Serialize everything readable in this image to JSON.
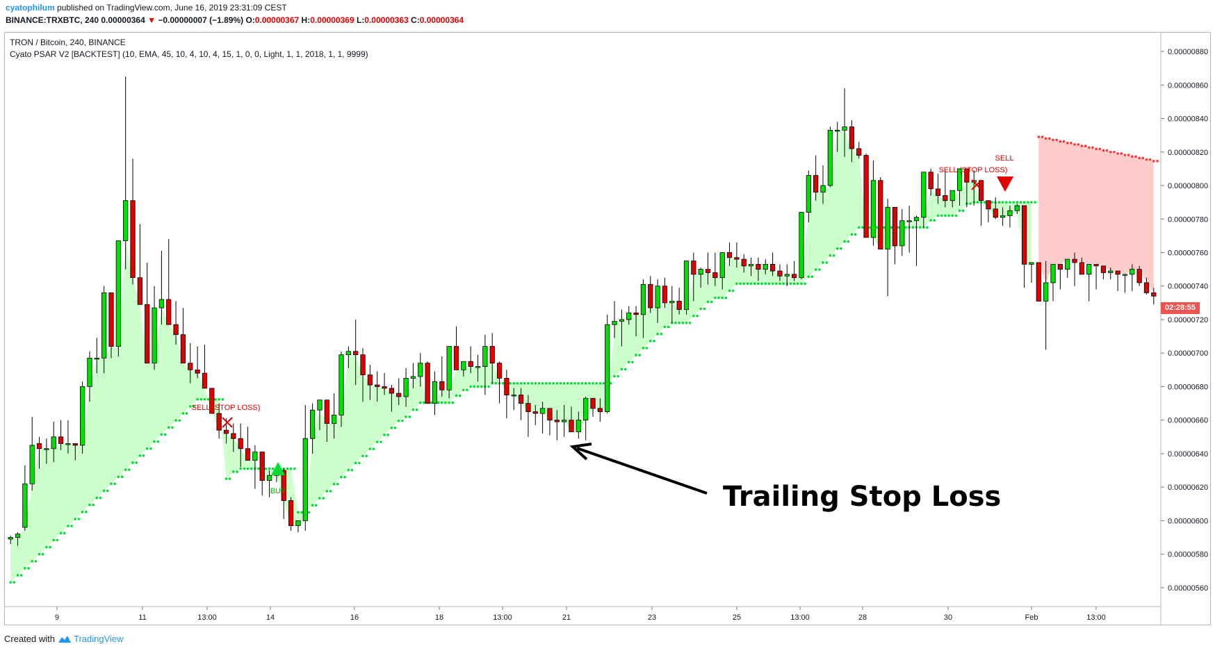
{
  "header": {
    "author": "cyatophilum",
    "published": " published on TradingView.com, June 16, 2019 23:31:09 CEST",
    "symbol_line_prefix": "BINANCE:TRXBTC, 240",
    "last": "0.00000364",
    "change": "−0.00000007 (−1.89%)",
    "o_label": "O:",
    "o_value": "0.00000367",
    "h_label": "H:",
    "h_value": "0.00000369",
    "l_label": "L:",
    "l_value": "0.00000363",
    "c_label": "C:",
    "c_value": "0.00000364"
  },
  "legend": {
    "title": "TRON / Bitcoin, 240, BINANCE",
    "indicator": "Cyato PSAR V2 [BACKTEST] (10, EMA, 45, 10, 4, 10, 4, 15, 1, 0, 0, Light, 1, 1, 2018, 1, 1, 9999)"
  },
  "price_tag": "02:28:55",
  "footer": {
    "created_with": "Created with",
    "brand": "TradingView"
  },
  "colors": {
    "up": "#00e000",
    "down": "#e00000",
    "stop_long": "#00dd33",
    "stop_short": "#ff3333",
    "fill_long": "#ccffcc",
    "fill_short": "#ffcccc",
    "grid_text": "#131722"
  },
  "chart_data": {
    "type": "candlestick",
    "title": "TRON / Bitcoin, 240, BINANCE",
    "x_ticks": [
      "9",
      "11",
      "13:00",
      "14",
      "16",
      "18",
      "13:00",
      "21",
      "23",
      "25",
      "13:00",
      "28",
      "30",
      "Feb",
      "13:00"
    ],
    "y_ticks": [
      "0.00000880",
      "0.00000860",
      "0.00000840",
      "0.00000820",
      "0.00000800",
      "0.00000780",
      "0.00000760",
      "0.00000740",
      "0.00000720",
      "0.00000700",
      "0.00000680",
      "0.00000660",
      "0.00000640",
      "0.00000620",
      "0.00000600",
      "0.00000580",
      "0.00000560"
    ],
    "ylim": [
      5.5e-06,
      8.85e-06
    ],
    "candles_ohlc_e8": [
      [
        589,
        591,
        586,
        590
      ],
      [
        590,
        593,
        585,
        592
      ],
      [
        596,
        633,
        594,
        622
      ],
      [
        622,
        662,
        618,
        645
      ],
      [
        646,
        650,
        631,
        643
      ],
      [
        643,
        649,
        634,
        643
      ],
      [
        643,
        659,
        635,
        650
      ],
      [
        650,
        660,
        642,
        646
      ],
      [
        646,
        660,
        640,
        646
      ],
      [
        646,
        646,
        636,
        645
      ],
      [
        645,
        683,
        640,
        680
      ],
      [
        680,
        701,
        671,
        697
      ],
      [
        697,
        709,
        688,
        697
      ],
      [
        697,
        740,
        688,
        736
      ],
      [
        736,
        736,
        697,
        704
      ],
      [
        704,
        767,
        698,
        767
      ],
      [
        767,
        865,
        750,
        791
      ],
      [
        791,
        816,
        741,
        745
      ],
      [
        745,
        777,
        731,
        729
      ],
      [
        729,
        754,
        721,
        694
      ],
      [
        694,
        740,
        690,
        727
      ],
      [
        727,
        761,
        717,
        732
      ],
      [
        732,
        768,
        728,
        717
      ],
      [
        717,
        731,
        705,
        711
      ],
      [
        711,
        727,
        699,
        694
      ],
      [
        694,
        706,
        682,
        690
      ],
      [
        690,
        704,
        685,
        688
      ],
      [
        688,
        705,
        680,
        679
      ],
      [
        679,
        678,
        666,
        664
      ],
      [
        664,
        670,
        649,
        654
      ],
      [
        654,
        661,
        646,
        652
      ],
      [
        652,
        658,
        641,
        649
      ],
      [
        649,
        658,
        632,
        643
      ],
      [
        643,
        656,
        643,
        636
      ],
      [
        636,
        645,
        619,
        641
      ],
      [
        641,
        641,
        615,
        624
      ],
      [
        624,
        630,
        614,
        627
      ],
      [
        627,
        625,
        623,
        630
      ],
      [
        630,
        631,
        601,
        612
      ],
      [
        612,
        614,
        594,
        597
      ],
      [
        597,
        600,
        593,
        600
      ],
      [
        600,
        669,
        594,
        649
      ],
      [
        649,
        670,
        640,
        666
      ],
      [
        666,
        667,
        654,
        672
      ],
      [
        672,
        669,
        647,
        658
      ],
      [
        658,
        676,
        649,
        663
      ],
      [
        663,
        701,
        656,
        699
      ],
      [
        699,
        704,
        691,
        701
      ],
      [
        701,
        720,
        681,
        699
      ],
      [
        699,
        703,
        671,
        687
      ],
      [
        687,
        693,
        672,
        681
      ],
      [
        681,
        689,
        671,
        680
      ],
      [
        680,
        688,
        675,
        679
      ],
      [
        679,
        681,
        665,
        676
      ],
      [
        676,
        685,
        669,
        674
      ],
      [
        674,
        691,
        668,
        685
      ],
      [
        685,
        694,
        679,
        686
      ],
      [
        686,
        700,
        680,
        694
      ],
      [
        694,
        695,
        676,
        670
      ],
      [
        670,
        689,
        663,
        683
      ],
      [
        683,
        698,
        674,
        678
      ],
      [
        678,
        704,
        673,
        704
      ],
      [
        704,
        716,
        690,
        690
      ],
      [
        690,
        694,
        686,
        695
      ],
      [
        695,
        704,
        688,
        692
      ],
      [
        692,
        699,
        683,
        692
      ],
      [
        692,
        711,
        675,
        704
      ],
      [
        704,
        712,
        682,
        694
      ],
      [
        694,
        695,
        670,
        685
      ],
      [
        685,
        690,
        661,
        675
      ],
      [
        675,
        679,
        666,
        675
      ],
      [
        675,
        679,
        660,
        670
      ],
      [
        670,
        675,
        650,
        665
      ],
      [
        665,
        669,
        657,
        664
      ],
      [
        664,
        671,
        652,
        667
      ],
      [
        667,
        664,
        651,
        660
      ],
      [
        660,
        666,
        648,
        659
      ],
      [
        659,
        669,
        650,
        660
      ],
      [
        660,
        668,
        655,
        653
      ],
      [
        653,
        665,
        649,
        660
      ],
      [
        660,
        674,
        648,
        673
      ],
      [
        673,
        669,
        662,
        667
      ],
      [
        667,
        673,
        659,
        665
      ],
      [
        665,
        723,
        664,
        717
      ],
      [
        717,
        731,
        709,
        719
      ],
      [
        719,
        726,
        704,
        720
      ],
      [
        720,
        728,
        717,
        724
      ],
      [
        724,
        728,
        710,
        723
      ],
      [
        723,
        744,
        709,
        741
      ],
      [
        741,
        746,
        724,
        727
      ],
      [
        727,
        744,
        718,
        740
      ],
      [
        740,
        745,
        727,
        730
      ],
      [
        730,
        740,
        718,
        731
      ],
      [
        731,
        739,
        723,
        726
      ],
      [
        726,
        751,
        723,
        755
      ],
      [
        755,
        760,
        731,
        747
      ],
      [
        747,
        751,
        739,
        750
      ],
      [
        750,
        760,
        741,
        748
      ],
      [
        748,
        760,
        740,
        745
      ],
      [
        745,
        756,
        738,
        760
      ],
      [
        760,
        766,
        752,
        757
      ],
      [
        757,
        766,
        751,
        756
      ],
      [
        756,
        759,
        748,
        752
      ],
      [
        752,
        757,
        746,
        753
      ],
      [
        753,
        757,
        743,
        750
      ],
      [
        750,
        756,
        747,
        753
      ],
      [
        753,
        760,
        746,
        749
      ],
      [
        749,
        753,
        743,
        746
      ],
      [
        746,
        753,
        740,
        747
      ],
      [
        747,
        755,
        743,
        745
      ],
      [
        745,
        773,
        744,
        784
      ],
      [
        784,
        809,
        778,
        806
      ],
      [
        806,
        818,
        791,
        796
      ],
      [
        796,
        812,
        789,
        800
      ],
      [
        800,
        835,
        799,
        833
      ],
      [
        833,
        838,
        820,
        833
      ],
      [
        833,
        858,
        817,
        835
      ],
      [
        835,
        839,
        814,
        822
      ],
      [
        822,
        826,
        816,
        818
      ],
      [
        818,
        819,
        776,
        769
      ],
      [
        769,
        815,
        764,
        803
      ],
      [
        803,
        805,
        765,
        762
      ],
      [
        762,
        792,
        734,
        787
      ],
      [
        787,
        780,
        753,
        764
      ],
      [
        764,
        786,
        758,
        779
      ],
      [
        779,
        788,
        760,
        779
      ],
      [
        779,
        782,
        752,
        781
      ],
      [
        781,
        801,
        775,
        808
      ],
      [
        808,
        810,
        794,
        798
      ],
      [
        798,
        807,
        789,
        794
      ],
      [
        794,
        809,
        787,
        791
      ],
      [
        791,
        797,
        787,
        797
      ],
      [
        797,
        810,
        788,
        810
      ],
      [
        810,
        802,
        787,
        802
      ],
      [
        802,
        809,
        788,
        803
      ],
      [
        803,
        801,
        776,
        791
      ],
      [
        791,
        790,
        778,
        786
      ],
      [
        786,
        793,
        780,
        781
      ],
      [
        781,
        787,
        776,
        782
      ],
      [
        782,
        788,
        775,
        785
      ],
      [
        785,
        789,
        783,
        788
      ],
      [
        788,
        783,
        739,
        753
      ],
      [
        753,
        753,
        742,
        754
      ],
      [
        754,
        750,
        731,
        731
      ],
      [
        731,
        755,
        702,
        742
      ],
      [
        742,
        751,
        731,
        753
      ],
      [
        753,
        753,
        738,
        750
      ],
      [
        750,
        755,
        745,
        756
      ],
      [
        756,
        760,
        740,
        754
      ],
      [
        754,
        757,
        747,
        747
      ],
      [
        747,
        753,
        731,
        753
      ],
      [
        753,
        748,
        738,
        752
      ],
      [
        752,
        749,
        744,
        748
      ],
      [
        748,
        751,
        744,
        749
      ],
      [
        749,
        749,
        737,
        747
      ],
      [
        747,
        746,
        736,
        747
      ],
      [
        747,
        753,
        737,
        750
      ],
      [
        750,
        752,
        740,
        742
      ],
      [
        742,
        745,
        735,
        736
      ],
      [
        736,
        739,
        729,
        734
      ]
    ],
    "psar_e8": [
      [
        0,
        555
      ],
      [
        1,
        558
      ],
      [
        2,
        563
      ],
      [
        3,
        573
      ],
      [
        4,
        584
      ],
      [
        5,
        596
      ],
      [
        6,
        606
      ],
      [
        7,
        608
      ],
      [
        8,
        610
      ],
      [
        9,
        613
      ],
      [
        10,
        618
      ],
      [
        11,
        622
      ],
      [
        12,
        624
      ],
      [
        13,
        626
      ],
      [
        14,
        626
      ],
      [
        15,
        627
      ],
      [
        16,
        627
      ],
      [
        17,
        627
      ],
      [
        18,
        627
      ],
      [
        19,
        627
      ],
      [
        20,
        626
      ],
      [
        21,
        629
      ],
      [
        22,
        631
      ],
      [
        23,
        632
      ],
      [
        24,
        633
      ],
      [
        25,
        634
      ],
      [
        26,
        635
      ],
      [
        27,
        635
      ],
      [
        28,
        635
      ],
      [
        29,
        635
      ]
    ],
    "signals": [
      {
        "type": "sell_stop_loss",
        "label": "SELL (STOP LOSS)"
      },
      {
        "type": "buy",
        "label": "BUY"
      },
      {
        "type": "sell_stop_loss",
        "label": "SELL (STOP LOSS)"
      },
      {
        "type": "sell",
        "label": "SELL"
      }
    ],
    "annotation": "Trailing Stop Loss"
  }
}
